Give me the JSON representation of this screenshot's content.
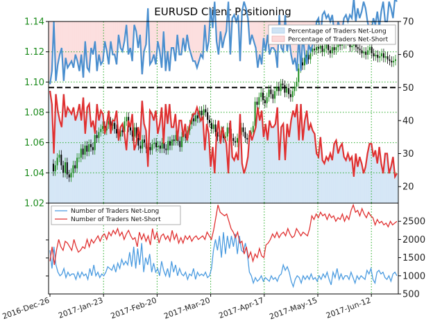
{
  "chart_data": [
    {
      "type": "line",
      "title": "EURUSD Client Positioning",
      "price_axis": {
        "ticks": [
          "1.02",
          "1.04",
          "1.06",
          "1.08",
          "1.10",
          "1.12",
          "1.14"
        ],
        "values": [
          1.02,
          1.04,
          1.06,
          1.08,
          1.1,
          1.12,
          1.14
        ],
        "ylim": [
          1.02,
          1.14
        ]
      },
      "percent_axis": {
        "ticks": [
          "20",
          "30",
          "40",
          "50",
          "60",
          "70"
        ],
        "values": [
          20,
          30,
          40,
          50,
          60,
          70
        ],
        "ylim": [
          15,
          70
        ]
      },
      "reference_line": 50,
      "series": [
        {
          "name": "Percentage of Traders Net-Long",
          "color": "#4a8fcf",
          "values": [
            51,
            55,
            70,
            52,
            57,
            60,
            62,
            52,
            59,
            56,
            57,
            58,
            56,
            60,
            58,
            55,
            60,
            53,
            64,
            56,
            55,
            62,
            60,
            64,
            55,
            60,
            57,
            58,
            64,
            61,
            57,
            64,
            60,
            60,
            57,
            66,
            62,
            61,
            64,
            69,
            60,
            62,
            58,
            69,
            67,
            62,
            66,
            54,
            61,
            63,
            74,
            57,
            58,
            60,
            57,
            64,
            61,
            56,
            67,
            55,
            61,
            55,
            62,
            62,
            58,
            66,
            60,
            60,
            65,
            61,
            66,
            62,
            60,
            58,
            58,
            56,
            58,
            60,
            59,
            69,
            61,
            64,
            74,
            68,
            76,
            64,
            60,
            67,
            62,
            65,
            67,
            76,
            60,
            71,
            72,
            70,
            72,
            58,
            73,
            76,
            74,
            71,
            63,
            66,
            64,
            62,
            56,
            60,
            57,
            65,
            61,
            66,
            60,
            62,
            62,
            61,
            56,
            72,
            62,
            61,
            72,
            61,
            65,
            60,
            57,
            59,
            55,
            66,
            55,
            66,
            60,
            57,
            63,
            61,
            63,
            64,
            70,
            71,
            65,
            72,
            73,
            71,
            72,
            70,
            72,
            67,
            66,
            70,
            68,
            67,
            71,
            72,
            70,
            72,
            71,
            77,
            70,
            74,
            71,
            73,
            76,
            74,
            70,
            67,
            67,
            71,
            69,
            73,
            68,
            73,
            76,
            70,
            70,
            76,
            74,
            71,
            77,
            76
          ]
        },
        {
          "name": "Percentage of Traders Net-Short",
          "color": "#e05050",
          "values": [
            49,
            45,
            30,
            48,
            43,
            40,
            38,
            48,
            41,
            44,
            43,
            42,
            44,
            40,
            42,
            45,
            40,
            47,
            36,
            44,
            45,
            38,
            40,
            36,
            45,
            40,
            43,
            42,
            36,
            39,
            43,
            36,
            40,
            40,
            43,
            34,
            38,
            39,
            36,
            31,
            40,
            38,
            42,
            31,
            33,
            38,
            34,
            46,
            39,
            37,
            26,
            43,
            42,
            40,
            43,
            36,
            39,
            44,
            33,
            45,
            39,
            45,
            38,
            38,
            42,
            34,
            40,
            40,
            35,
            39,
            34,
            38,
            40,
            42,
            42,
            44,
            42,
            40,
            41,
            31,
            39,
            36,
            26,
            32,
            24,
            36,
            40,
            33,
            38,
            35,
            33,
            24,
            40,
            29,
            28,
            30,
            28,
            42,
            27,
            24,
            26,
            29,
            37,
            34,
            36,
            38,
            44,
            40,
            43,
            35,
            39,
            34,
            40,
            38,
            38,
            39,
            44,
            28,
            38,
            39,
            28,
            39,
            35,
            40,
            43,
            41,
            45,
            34,
            45,
            34,
            40,
            43,
            37,
            39,
            37,
            36,
            30,
            29,
            35,
            28,
            27,
            29,
            28,
            30,
            28,
            33,
            34,
            30,
            32,
            33,
            29,
            28,
            30,
            28,
            29,
            23,
            30,
            26,
            29,
            27,
            24,
            26,
            30,
            33,
            33,
            29,
            31,
            27,
            32,
            27,
            24,
            30,
            30,
            24,
            26,
            29,
            23,
            24
          ]
        },
        {
          "name": "Number of Traders Net-Long",
          "color": "#4a9be0",
          "ylim": [
            500,
            3000
          ],
          "values": [
            1700,
            1200,
            1800,
            1300,
            1100,
            1000,
            1050,
            1200,
            950,
            1100,
            1000,
            1050,
            1050,
            900,
            1100,
            950,
            1100,
            1000,
            1050,
            900,
            1200,
            1000,
            1300,
            1000,
            1100,
            950,
            1050,
            1000,
            1100,
            1250,
            1200,
            1150,
            1300,
            1100,
            1350,
            1200,
            1450,
            1300,
            1400,
            1300,
            1650,
            1250,
            1800,
            1200,
            1750,
            1300,
            1900,
            1100,
            1500,
            1300,
            1600,
            1100,
            1350,
            1100,
            1200,
            1000,
            1400,
            1150,
            1000,
            1200,
            950,
            1400,
            1100,
            1300,
            1000,
            1200,
            1050,
            1000,
            1100,
            900,
            1050,
            1000,
            1200,
            900,
            1100,
            1000,
            1050,
            1000,
            1100,
            950,
            1000,
            1200,
            1700,
            2000,
            1700,
            2100,
            1500,
            2200,
            1600,
            2100,
            1750,
            2100,
            1800,
            2150,
            1600,
            2100,
            1700,
            1650,
            1900,
            1600,
            1100,
            1000,
            800,
            950,
            850,
            900,
            1000,
            850,
            950,
            900,
            850,
            1000,
            900,
            950,
            850,
            1000,
            1050,
            1300,
            1150,
            1250,
            1100,
            850,
            700,
            900,
            1000,
            950,
            800,
            1000,
            900,
            1000,
            900,
            1050,
            900,
            950,
            850,
            1000,
            900,
            1050,
            950,
            1100,
            900,
            750,
            1100,
            950,
            1200,
            900,
            1050,
            900,
            1000,
            1000,
            900,
            1100,
            950,
            800,
            1000,
            900,
            1000,
            950,
            900,
            1150,
            1050,
            1200,
            900,
            800,
            1100,
            1150,
            1050,
            1100,
            950,
            900,
            1000,
            850,
            1050,
            1100,
            1000
          ]
        },
        {
          "name": "Number of Traders Net-Short",
          "color": "#e03030",
          "ylim": [
            500,
            3000
          ],
          "values": [
            1400,
            1800,
            1300,
            1700,
            2000,
            1800,
            1700,
            1950,
            1900,
            1800,
            1700,
            2000,
            1800,
            1650,
            1700,
            1800,
            1750,
            2000,
            1800,
            2000,
            1900,
            2000,
            2100,
            1950,
            2100,
            2150,
            2000,
            2200,
            2100,
            2250,
            2150,
            2300,
            2100,
            2200,
            2000,
            2150,
            2250,
            2100,
            2000,
            2050,
            1800,
            2200,
            2000,
            2150,
            1950,
            2100,
            1850,
            2300,
            2000,
            2200,
            1900,
            2100,
            2150,
            2000,
            2100,
            1950,
            2250,
            2000,
            2150,
            1900,
            2050,
            1900,
            2100,
            2000,
            2100,
            1950,
            2050,
            2100,
            2000,
            2050,
            2100,
            2000,
            2200,
            2100,
            2000,
            2250,
            2600,
            2950,
            2750,
            2700,
            2650,
            2700,
            2500,
            2300,
            2200,
            2050,
            2200,
            1900,
            1950,
            1600,
            1800,
            1500,
            1650,
            1400,
            1600,
            1500,
            1750,
            1550,
            1500,
            1850,
            1900,
            2000,
            2150,
            2050,
            2200,
            2050,
            2150,
            2200,
            2100,
            2300,
            2150,
            2050,
            2100,
            2300,
            2200,
            2100,
            2200,
            2150,
            2100,
            2300,
            2650,
            2550,
            2700,
            2600,
            2750,
            2650,
            2700,
            2550,
            2700,
            2600,
            2650,
            2500,
            2600,
            2550,
            2700,
            2500,
            2650,
            2550,
            2800,
            2950,
            2750,
            2800,
            2650,
            2850,
            2700,
            2600,
            2750,
            2650,
            2600,
            2400,
            2550,
            2450,
            2500,
            2400,
            2450,
            2350,
            2500,
            2400,
            2450,
            2500
          ]
        }
      ],
      "price_series": {
        "name": "EURUSD",
        "values": [
          1.046,
          1.041,
          1.045,
          1.05,
          1.052,
          1.045,
          1.04,
          1.047,
          1.039,
          1.037,
          1.04,
          1.045,
          1.043,
          1.05,
          1.05,
          1.056,
          1.052,
          1.058,
          1.054,
          1.059,
          1.057,
          1.055,
          1.065,
          1.063,
          1.067,
          1.069,
          1.071,
          1.068,
          1.072,
          1.074,
          1.071,
          1.073,
          1.069,
          1.066,
          1.064,
          1.068,
          1.067,
          1.074,
          1.077,
          1.07,
          1.068,
          1.064,
          1.07,
          1.063,
          1.058,
          1.056,
          1.062,
          1.06,
          1.056,
          1.057,
          1.055,
          1.059,
          1.06,
          1.057,
          1.058,
          1.056,
          1.06,
          1.056,
          1.055,
          1.061,
          1.058,
          1.062,
          1.061,
          1.065,
          1.061,
          1.057,
          1.064,
          1.066,
          1.063,
          1.068,
          1.072,
          1.076,
          1.074,
          1.078,
          1.076,
          1.081,
          1.078,
          1.082,
          1.08,
          1.075,
          1.073,
          1.069,
          1.072,
          1.067,
          1.064,
          1.065,
          1.068,
          1.063,
          1.064,
          1.07,
          1.066,
          1.063,
          1.061,
          1.06,
          1.063,
          1.065,
          1.07,
          1.067,
          1.063,
          1.062,
          1.065,
          1.067,
          1.071,
          1.087,
          1.085,
          1.09,
          1.093,
          1.088,
          1.086,
          1.09,
          1.095,
          1.092,
          1.089,
          1.094,
          1.097,
          1.094,
          1.099,
          1.098,
          1.093,
          1.096,
          1.092,
          1.09,
          1.094,
          1.097,
          1.1,
          1.109,
          1.113,
          1.111,
          1.116,
          1.118,
          1.115,
          1.12,
          1.122,
          1.121,
          1.123,
          1.122,
          1.124,
          1.12,
          1.122,
          1.125,
          1.121,
          1.119,
          1.123,
          1.121,
          1.123,
          1.128,
          1.124,
          1.127,
          1.125,
          1.129,
          1.127,
          1.123,
          1.124,
          1.125,
          1.123,
          1.122,
          1.121,
          1.119,
          1.12,
          1.118,
          1.121,
          1.123,
          1.119,
          1.117,
          1.118,
          1.116,
          1.117,
          1.119,
          1.116,
          1.117,
          1.115,
          1.114,
          1.113,
          1.114,
          1.115
        ]
      },
      "x_axis": {
        "ticks": [
          "2016-Dec-26",
          "2017-Jan-23",
          "2017-Feb-20",
          "2017-Mar-20",
          "2017-Apr-17",
          "2017-May-15",
          "2017-Jun-12"
        ]
      },
      "count_axis": {
        "ticks": [
          "500",
          "1000",
          "1500",
          "2000",
          "2500"
        ],
        "values": [
          500,
          1000,
          1500,
          2000,
          2500
        ],
        "ylim": [
          500,
          3000
        ]
      },
      "legend_placement": "top-right (top panel), top-left (bottom panel)",
      "grid": true
    }
  ],
  "colors": {
    "green_grid": "#22aa22",
    "blue_fill": "#cfe3f4",
    "red_fill": "#fbd9d9",
    "candle_up": "#1a8a1a",
    "candle_down": "#000000"
  }
}
